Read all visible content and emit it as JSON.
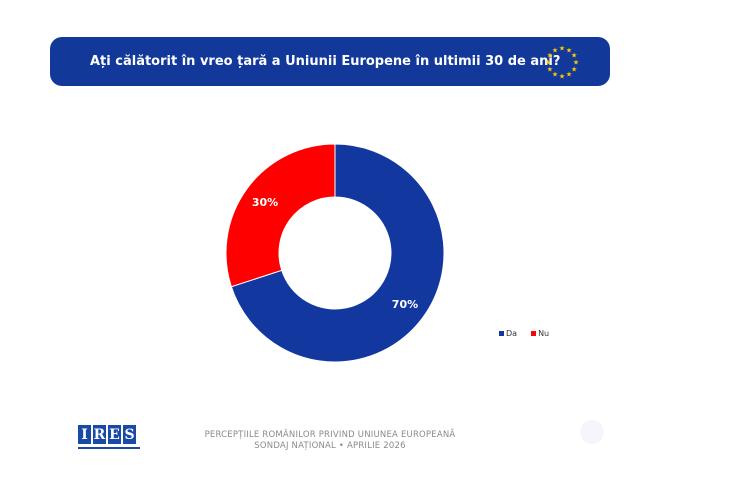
{
  "header": {
    "title": "Ați călătorit în vreo țară a Uniunii Europene în ultimii 30 de ani?",
    "flag_icon": "eu-flag-icon",
    "banner_color": "#12389a"
  },
  "chart_data": {
    "type": "pie",
    "variant": "donut",
    "categories": [
      "Da",
      "Nu"
    ],
    "values": [
      70,
      30
    ],
    "value_labels": [
      "70%",
      "30%"
    ],
    "colors": [
      "#1238a0",
      "#ff0000"
    ],
    "legend": [
      "Da",
      "Nu"
    ],
    "legend_position": "right"
  },
  "logo": {
    "letters": [
      "I",
      "R",
      "E",
      "S"
    ]
  },
  "footer": {
    "line1": "PERCEPȚIILE ROMÂNILOR PRIVIND UNIUNEA EUROPEANĂ",
    "line2": "SONDAJ NAȚIONAL • APRILIE 2026"
  }
}
